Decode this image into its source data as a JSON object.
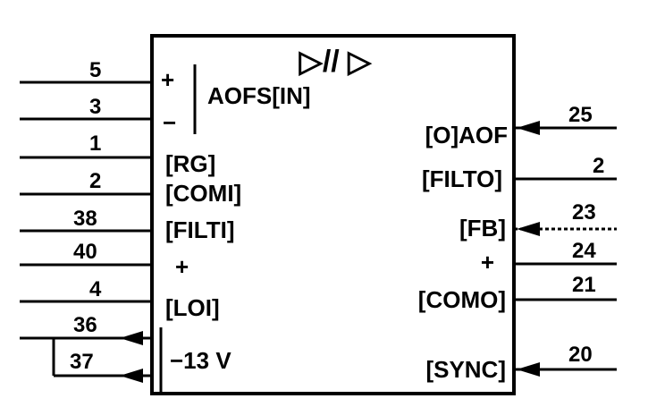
{
  "block": {
    "title": "▷// ▷",
    "left_pins": [
      {
        "num": "5",
        "label": "+"
      },
      {
        "num": "3",
        "label": "−"
      },
      {
        "num": "1",
        "label": "[RG]"
      },
      {
        "num": "2",
        "label": "[COMI]"
      },
      {
        "num": "38",
        "label": "[FILTI]"
      },
      {
        "num": "40",
        "label": "+"
      },
      {
        "num": "4",
        "label": "[LOI]"
      },
      {
        "num": "36",
        "label": ""
      },
      {
        "num": "37",
        "label": ""
      }
    ],
    "input_group_label": "AOFS[IN]",
    "supply_label": "−13 V",
    "right_pins": [
      {
        "num": "25",
        "label": "[O]AOF"
      },
      {
        "num": "2",
        "label": "[FILTO]"
      },
      {
        "num": "23",
        "label": "[FB]"
      },
      {
        "num": "24",
        "label": "+"
      },
      {
        "num": "21",
        "label": "[COMO]"
      },
      {
        "num": "20",
        "label": "[SYNC]"
      }
    ]
  }
}
